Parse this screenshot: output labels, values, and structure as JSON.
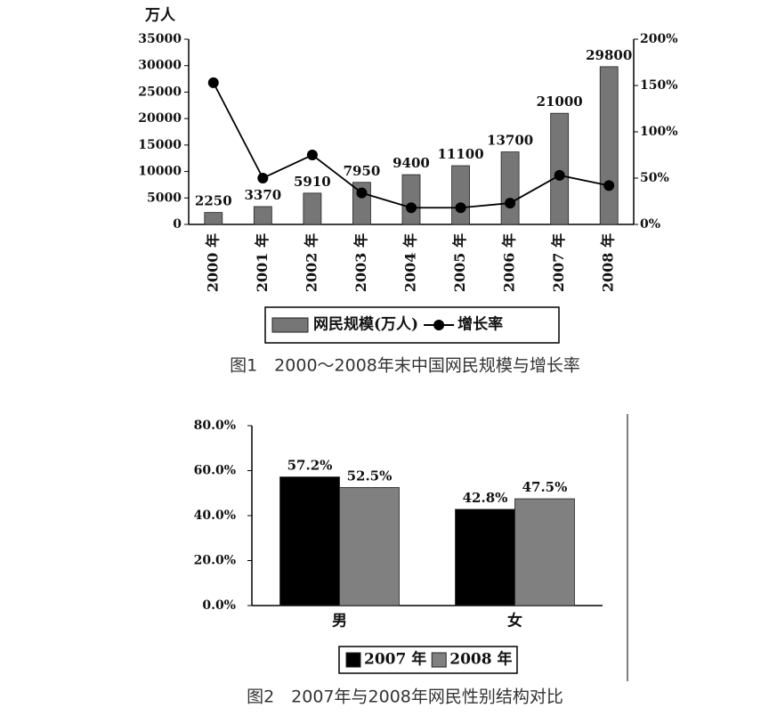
{
  "chart_data": [
    {
      "type": "combo",
      "y_label": "万人",
      "categories": [
        "2000 年",
        "2001 年",
        "2002 年",
        "2003 年",
        "2004 年",
        "2005 年",
        "2006 年",
        "2007 年",
        "2008 年"
      ],
      "series": [
        {
          "name": "网民规模(万人)",
          "type": "bar",
          "color": "#767676",
          "values": [
            2250,
            3370,
            5910,
            7950,
            9400,
            11100,
            13700,
            21000,
            29800
          ]
        },
        {
          "name": "增长率",
          "type": "line",
          "axis": "y2",
          "color": "#000000",
          "values": [
            153,
            50,
            75,
            34,
            18,
            18,
            23,
            53,
            42
          ]
        }
      ],
      "ylim": [
        0,
        35000
      ],
      "yticks": [
        0,
        5000,
        10000,
        15000,
        20000,
        25000,
        30000,
        35000
      ],
      "y2lim": [
        0,
        200
      ],
      "y2ticks": [
        {
          "value": 0,
          "label": "0%"
        },
        {
          "value": 50,
          "label": "50%"
        },
        {
          "value": 100,
          "label": "100%"
        },
        {
          "value": 150,
          "label": "150%"
        },
        {
          "value": 200,
          "label": "200%"
        }
      ],
      "caption": "图1　2000～2008年末中国网民规模与增长率"
    },
    {
      "type": "bar",
      "categories": [
        "男",
        "女"
      ],
      "series": [
        {
          "name": "2007 年",
          "color": "#000000",
          "values": [
            57.2,
            42.8
          ],
          "value_labels": [
            "57.2%",
            "42.8%"
          ]
        },
        {
          "name": "2008 年",
          "color": "#808080",
          "values": [
            52.5,
            47.5
          ],
          "value_labels": [
            "52.5%",
            "47.5%"
          ]
        }
      ],
      "ylim": [
        0,
        80
      ],
      "yticks": [
        {
          "value": 0,
          "label": "0.0%"
        },
        {
          "value": 20,
          "label": "20.0%"
        },
        {
          "value": 40,
          "label": "40.0%"
        },
        {
          "value": 60,
          "label": "60.0%"
        },
        {
          "value": 80,
          "label": "80.0%"
        }
      ],
      "caption": "图2　2007年与2008年网民性别结构对比"
    }
  ]
}
